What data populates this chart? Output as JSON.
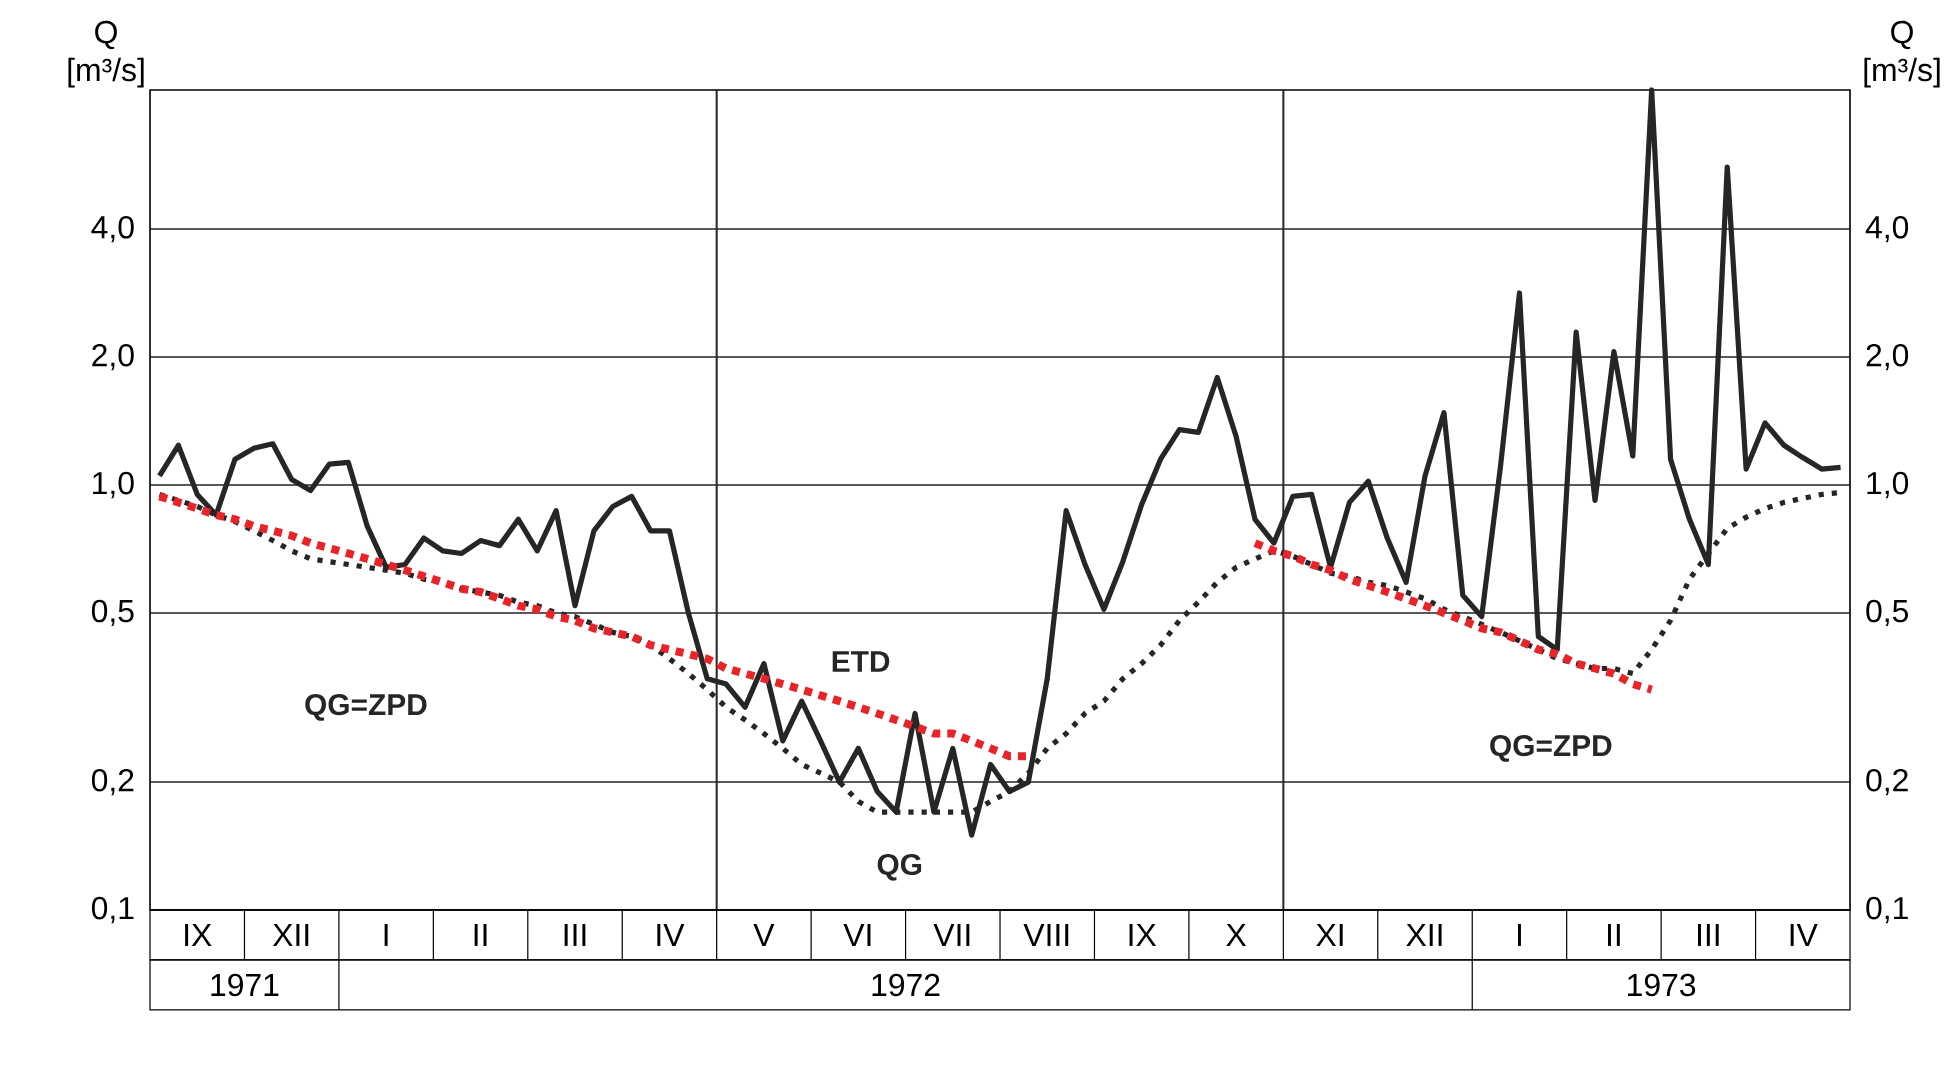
{
  "chart_data": {
    "type": "line",
    "ylabel": "Q [m³/s]",
    "y2label": "Q [m³/s]",
    "categories": [
      null,
      null,
      "IX",
      null,
      null,
      null,
      null,
      "XII",
      null,
      null,
      null,
      null,
      "I",
      null,
      null,
      null,
      null,
      "II",
      null,
      null,
      null,
      null,
      "III",
      null,
      null,
      null,
      null,
      "IV",
      null,
      null,
      null,
      null,
      "V",
      null,
      null,
      null,
      null,
      "VI",
      null,
      null,
      null,
      null,
      "VII",
      null,
      null,
      null,
      null,
      "VIII",
      null,
      null,
      null,
      null,
      "IX",
      null,
      null,
      null,
      null,
      "X",
      null,
      null,
      null,
      null,
      "XI",
      null,
      null,
      null,
      null,
      "XII",
      null,
      null,
      null,
      null,
      "I",
      null,
      null,
      null,
      null,
      "II",
      null,
      null,
      null,
      null,
      "III",
      null,
      null,
      null,
      null,
      "IV",
      null,
      null
    ],
    "log": "y",
    "ylim": [
      0.1,
      8.5
    ],
    "yticks": [
      {
        "value": 0.1,
        "label": "0,1"
      },
      {
        "value": 0.2,
        "label": "0,2"
      },
      {
        "value": 0.5,
        "label": "0,5"
      },
      {
        "value": 1,
        "label": "1,0"
      },
      {
        "value": 2,
        "label": "2,0"
      },
      {
        "value": 4,
        "label": "4,0"
      }
    ],
    "grid": "y",
    "series": [
      {
        "color": "#262626",
        "line_style": "solid",
        "values": [
          1.05,
          1.24,
          0.95,
          0.85,
          1.15,
          1.22,
          1.25,
          1.03,
          0.97,
          1.12,
          1.13,
          0.8,
          0.64,
          0.65,
          0.75,
          0.7,
          0.69,
          0.74,
          0.72,
          0.83,
          0.7,
          0.87,
          0.52,
          0.78,
          0.89,
          0.94,
          0.78,
          0.78,
          0.5,
          0.35,
          0.34,
          0.3,
          0.38,
          0.25,
          0.31,
          0.25,
          0.2,
          0.24,
          0.19,
          0.17,
          0.29,
          0.17,
          0.24,
          0.15,
          0.22,
          0.19,
          0.2,
          0.35,
          0.87,
          0.65,
          0.51,
          0.66,
          0.9,
          1.15,
          1.35,
          1.33,
          1.79,
          1.3,
          0.83,
          0.73,
          0.94,
          0.95,
          0.64,
          0.91,
          1.02,
          0.75,
          0.59,
          1.05,
          1.48,
          0.55,
          0.49,
          1.11,
          2.83,
          0.44,
          0.41,
          2.29,
          0.92,
          2.06,
          1.17,
          8.5,
          1.15,
          0.83,
          0.65,
          5.6,
          1.09,
          1.4,
          1.24,
          1.16,
          1.09,
          1.1
        ]
      },
      {
        "color": "#262626",
        "line_style": "dotted",
        "values": [
          0.95,
          0.92,
          0.89,
          0.85,
          0.82,
          0.78,
          0.74,
          0.7,
          0.67,
          0.66,
          0.65,
          0.64,
          0.63,
          0.62,
          0.6,
          0.59,
          0.57,
          0.56,
          0.55,
          0.53,
          0.52,
          0.5,
          0.49,
          0.47,
          0.45,
          0.44,
          0.42,
          0.39,
          0.36,
          0.33,
          0.3,
          0.28,
          0.26,
          0.24,
          0.22,
          0.21,
          0.2,
          0.18,
          0.17,
          0.17,
          0.17,
          0.17,
          0.17,
          0.17,
          0.18,
          0.19,
          0.21,
          0.24,
          0.26,
          0.29,
          0.31,
          0.35,
          0.38,
          0.42,
          0.48,
          0.53,
          0.59,
          0.64,
          0.67,
          0.7,
          0.68,
          0.65,
          0.62,
          0.61,
          0.59,
          0.58,
          0.56,
          0.54,
          0.51,
          0.49,
          0.47,
          0.45,
          0.43,
          0.41,
          0.39,
          0.38,
          0.37,
          0.37,
          0.36,
          0.41,
          0.48,
          0.6,
          0.69,
          0.79,
          0.84,
          0.88,
          0.91,
          0.93,
          0.95,
          0.96
        ]
      },
      {
        "color": "#e8242a",
        "line_style": "dashed",
        "values": [
          0.94,
          0.91,
          0.88,
          0.85,
          0.83,
          0.8,
          0.78,
          0.76,
          0.73,
          0.71,
          0.69,
          0.67,
          0.65,
          0.63,
          0.61,
          0.59,
          0.57,
          0.56,
          0.54,
          0.52,
          0.51,
          0.49,
          0.48,
          0.46,
          0.45,
          0.44,
          0.42,
          0.41,
          0.4,
          0.39,
          0.37,
          0.36,
          0.35,
          0.34,
          0.33,
          0.32,
          0.31,
          0.3,
          0.29,
          0.28,
          0.27,
          0.26,
          0.26,
          0.25,
          0.24,
          0.23,
          0.23,
          null,
          null,
          null,
          null,
          null,
          null,
          null,
          null,
          null,
          null,
          null,
          0.73,
          0.7,
          0.68,
          0.65,
          0.63,
          0.6,
          0.58,
          0.56,
          0.54,
          0.52,
          0.5,
          0.48,
          0.46,
          0.45,
          0.43,
          0.41,
          0.4,
          0.38,
          0.37,
          0.36,
          0.34,
          0.33,
          null,
          null,
          null,
          null,
          null,
          null,
          null,
          null,
          null,
          null
        ]
      }
    ],
    "annotations": [
      "QG=ZPD",
      "ETD",
      "QG",
      "QG=ZPD",
      "1971",
      "1972",
      "1973"
    ]
  }
}
